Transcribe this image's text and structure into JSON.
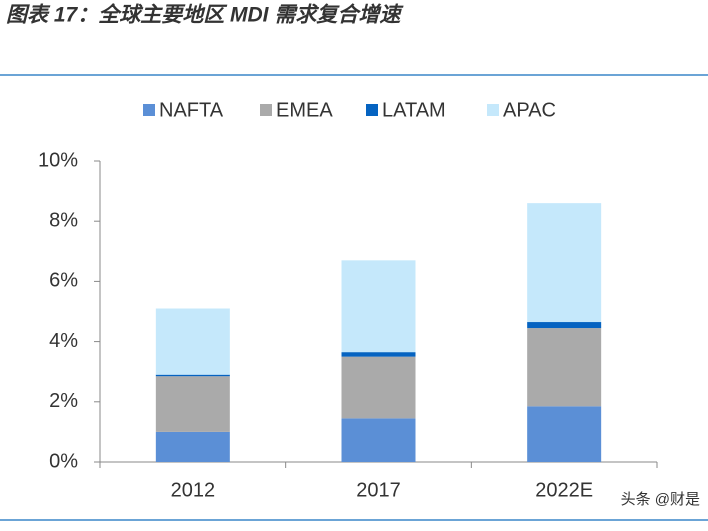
{
  "chart_data": {
    "type": "stacked_bar",
    "title": "图表 17：全球主要地区 MDI 需求复合增速",
    "categories": [
      "2012",
      "2017",
      "2022E"
    ],
    "series": [
      {
        "name": "NAFTA",
        "color": "#5b8fd6",
        "values": [
          1.0,
          1.45,
          1.85
        ]
      },
      {
        "name": "EMEA",
        "color": "#aaaaaa",
        "values": [
          1.85,
          2.05,
          2.6
        ]
      },
      {
        "name": "LATAM",
        "color": "#0563c1",
        "values": [
          0.05,
          0.15,
          0.2
        ]
      },
      {
        "name": "APAC",
        "color": "#c5e8fb",
        "values": [
          2.2,
          3.05,
          3.95
        ]
      }
    ],
    "ylim": [
      0,
      10
    ],
    "yticks": [
      {
        "value": 0,
        "label": "0%"
      },
      {
        "value": 2,
        "label": "2%"
      },
      {
        "value": 4,
        "label": "4%"
      },
      {
        "value": 6,
        "label": "6%"
      },
      {
        "value": 8,
        "label": "8%"
      },
      {
        "value": 10,
        "label": "10%"
      }
    ],
    "legend": "top",
    "watermark": "头条 @财是"
  }
}
